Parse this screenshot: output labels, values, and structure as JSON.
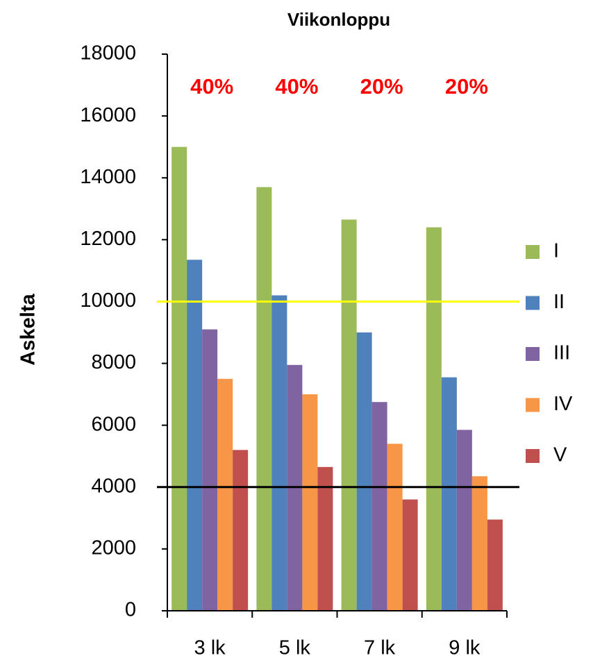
{
  "chart_data": {
    "type": "bar",
    "title": "Viikonloppu",
    "y_label": "Askelta",
    "categories": [
      "3 lk",
      "5 lk",
      "7 lk",
      "9 lk"
    ],
    "group_labels": [
      "40%",
      "40%",
      "20%",
      "20%"
    ],
    "series": [
      {
        "name": "I",
        "color": "#9bbb59",
        "values": [
          15000,
          13700,
          12650,
          12400
        ]
      },
      {
        "name": "II",
        "color": "#4f81bd",
        "values": [
          11350,
          10200,
          9000,
          7550
        ]
      },
      {
        "name": "III",
        "color": "#8064a2",
        "values": [
          9100,
          7950,
          6750,
          5850
        ]
      },
      {
        "name": "IV",
        "color": "#f79646",
        "values": [
          7500,
          7000,
          5400,
          4350
        ]
      },
      {
        "name": "V",
        "color": "#c0504d",
        "values": [
          5200,
          4650,
          3600,
          2950
        ]
      }
    ],
    "reference_lines": [
      {
        "value": 10000,
        "color": "#ffff00"
      },
      {
        "value": 4000,
        "color": "#000000"
      }
    ],
    "ylim": [
      0,
      18000
    ],
    "yticks": [
      0,
      2000,
      4000,
      6000,
      8000,
      10000,
      12000,
      14000,
      16000,
      18000
    ],
    "grid": false,
    "legend": "right"
  }
}
